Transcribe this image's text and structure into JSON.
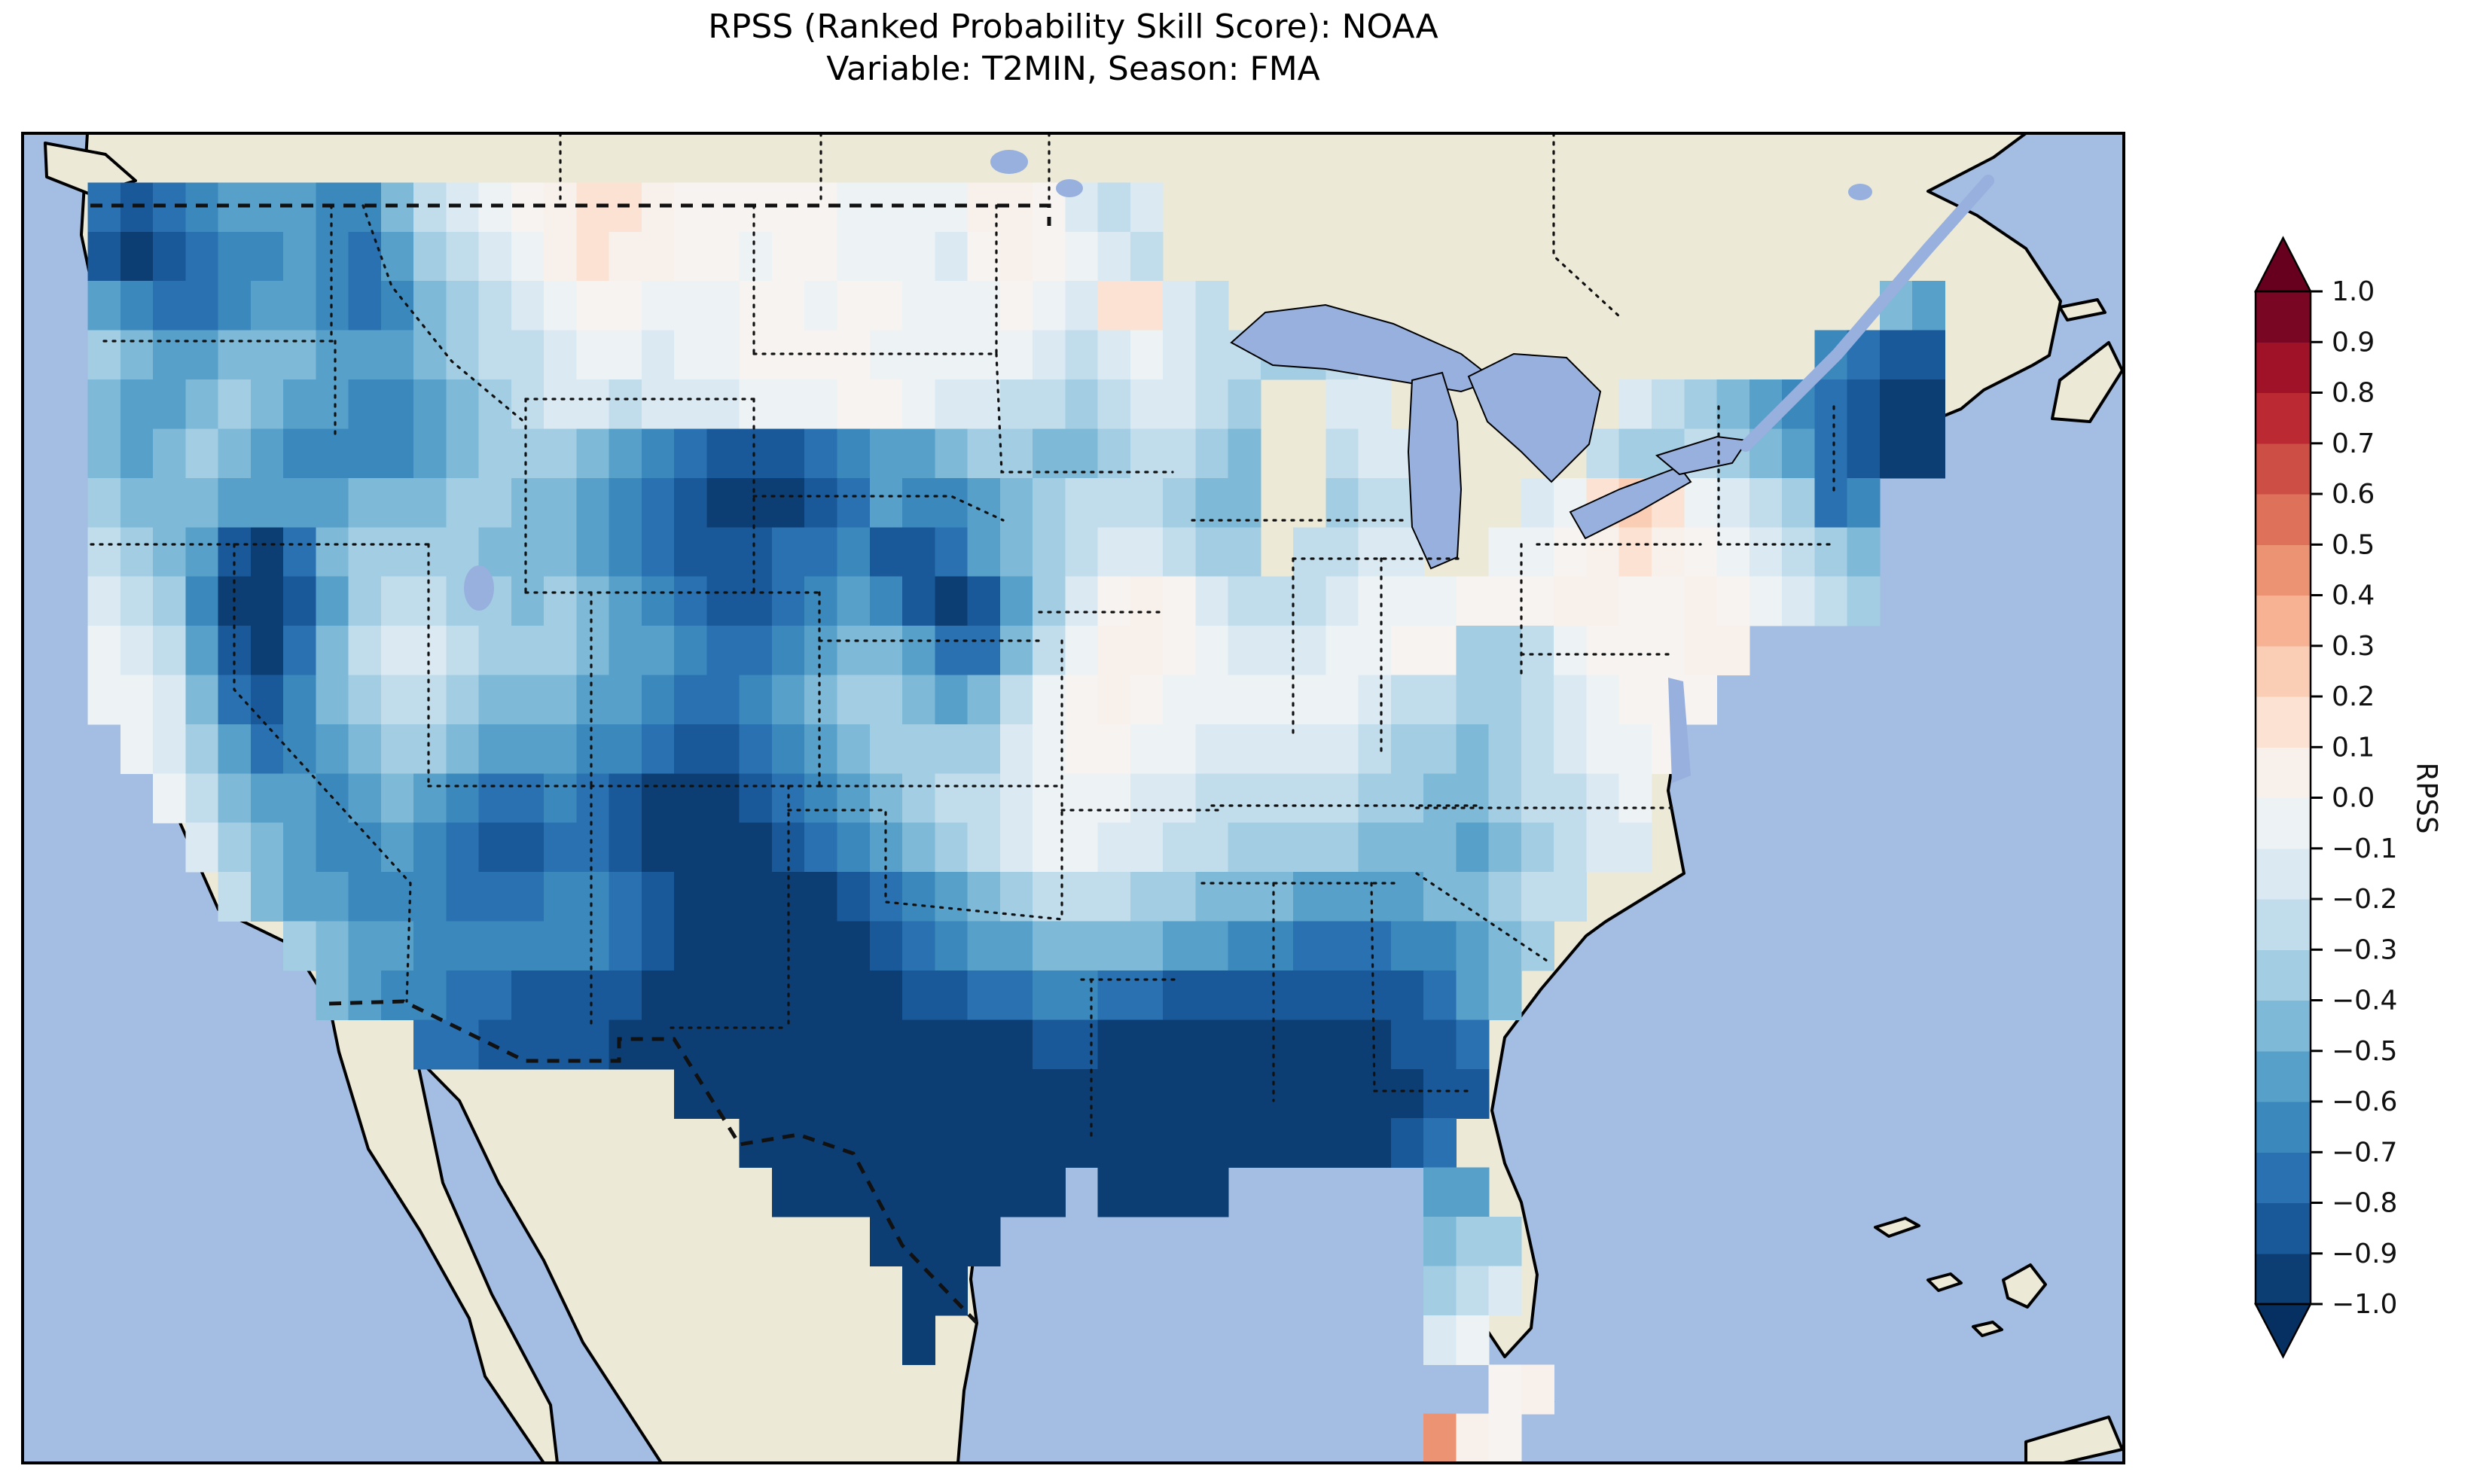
{
  "title": {
    "line1": "RPSS (Ranked Probability Skill Score): NOAA",
    "line2": "Variable: T2MIN, Season: FMA"
  },
  "colorbar": {
    "label": "RPSS",
    "ticks": [
      "1.0",
      "0.9",
      "0.8",
      "0.7",
      "0.6",
      "0.5",
      "0.4",
      "0.3",
      "0.2",
      "0.1",
      "0.0",
      "−0.1",
      "−0.2",
      "−0.3",
      "−0.4",
      "−0.5",
      "−0.6",
      "−0.7",
      "−0.8",
      "−0.9",
      "−1.0"
    ],
    "band_colors_bottom_to_top": [
      "#0c3e74",
      "#1a5999",
      "#2a71b2",
      "#3b88bd",
      "#57a0ca",
      "#7eb9d7",
      "#a2cde3",
      "#c1ddec",
      "#dae9f2",
      "#edf2f5",
      "#f8f0eb",
      "#fbe2d3",
      "#facdb5",
      "#f6b293",
      "#ec9374",
      "#dd715a",
      "#cd4e44",
      "#bb2a33",
      "#9f1228",
      "#790622"
    ],
    "extend_over": "#67001f",
    "extend_under": "#053061"
  },
  "map": {
    "ocean": "#a4bde2",
    "land": "#ece9d6",
    "lake": "#97b0de",
    "coast": "#000000",
    "border": "#111111",
    "frame": "#000000"
  },
  "chart_data": {
    "type": "heatmap",
    "title": "RPSS (Ranked Probability Skill Score): NOAA",
    "model": "NOAA",
    "variable": "T2MIN",
    "season": "FMA",
    "colorbar_label": "RPSS",
    "colormap": "RdBu_r",
    "vmin": -1.0,
    "vmax": 1.0,
    "bin_width": 0.1,
    "extent": {
      "lon_min": -126.5,
      "lon_max": -62.0,
      "lat_min": 23.0,
      "lat_max": 50.5
    },
    "grid_cell_degrees": 1.0,
    "legend_position": "right",
    "value_map": {
      "a": -0.95,
      "b": -0.85,
      "c": -0.75,
      "d": -0.65,
      "e": -0.55,
      "f": -0.45,
      "g": -0.35,
      "h": -0.25,
      "i": -0.15,
      "j": -0.05,
      "k": 0.0,
      "l": 0.05,
      "m": 0.15,
      "n": 0.25,
      "o": 0.45
    },
    "colors": {
      "a": "#0c3e74",
      "b": "#1a5999",
      "c": "#2a71b2",
      "d": "#3b88bd",
      "e": "#57a0ca",
      "f": "#7eb9d7",
      "g": "#a2cde3",
      "h": "#c1ddec",
      "i": "#dae9f2",
      "j": "#edf2f5",
      "k": "#f6f3f0",
      "l": "#f8f0eb",
      "m": "#fbe2d3",
      "n": "#facdb5",
      "o": "#ec9374"
    },
    "no_data_char": ".",
    "grid_rows_north_to_south": [
      ".............................................................",
      "..cbcdeeeddfhijklmmlkkkkkjjjjllkihi..........................",
      "..babcddedceghijlmllkkjkkjjjiklkjih..........................",
      "..edccdeedcdfghijkkjjjkkjkkjjjkjimmih....................fe..",
      "..gfeefffeeefghhijjijjkkkkjjjjjihijihhgghi.............dcbb..",
      "..feefgfeeddefghiihiiijjjkkjiihhghiihg..ii.......ihgfedcbaa..",
      "..fefgfeddddefgggfedcbbbcdeefggffghhgf..hii.....hgghgfecbaa..",
      "..gfffeeeefffggffedcbaaabceddefghhhgff..ghh...ijmnmjihgcd....",
      "..hgfebacfggggfffedcbbbccdbbcefghiihgg.hhii..jjklmlkjihgf....",
      "..ihgdaabeghhggfgfedcbbcdedbabegiklkihhhijjjkkkllkklkjihg....",
      "..jihebacfhiihgggfeedccdeffeccfhjllkjiiijjkkgghjkkkll........",
      "..jjifcbdfghhgfffeedccdefggfefhjklkjjjjjjihhgghijkkk.........",
      "...jigecdefggfeeeddcbbcdefggggijkkjjiiiiihggfghijjk..........",
      "....jhfeedefedccdcbaaabcdefghhijjjiihhhhhggffghhij...........",
      ".....igfeddedcbbccbaaaabcdefghijjiihhggggfffefghii...........",
      "......hfeedddcccddcbaaaaabcdefghhhggfffeeeeffghh.............",
      "........gfeeddddddcbaaaaaabcdeeffffeeddcccddefg..............",
      ".........feddccbbbbaaaaaaaabbccddccbbbbbbbbcef...............",
      "............ccbbbbaaaaaaaaaaaaabbaaaaaaaaabbc................",
      "....................aaaaaaaaaaaaaaaaaaaaaaabb................",
      "......................aaaaaaaaaaaaaaaaaaaabc.................",
      ".......................aaaaaaaaa.aaaa......ee................",
      "..........................aaaa.............fgg...............",
      "...........................aa..............ghi...............",
      "...........................a...............ij................",
      ".............................................kl..............",
      "...........................................olk..............."
    ]
  }
}
